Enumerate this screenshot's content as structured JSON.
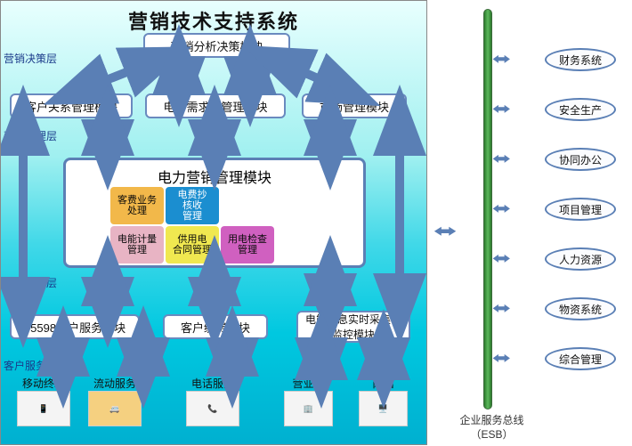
{
  "title": "营销技术支持系统",
  "layers": {
    "decision": "营销决策层",
    "management": "营销管理层",
    "business": "营销业务层",
    "service": "客户服务层"
  },
  "boxes": {
    "analysis": "营销分析决策模块",
    "crm": "客户关系管理模块",
    "demand": "电力需求侧管理模块",
    "market": "市场管理模块",
    "power_mkt": "电力营销管理模块",
    "svc_95598": "95598客户服务模块",
    "payment": "客户缴费模块",
    "energy_info": "电能信息实时采集与监控模块"
  },
  "puzzles": {
    "cust_biz": "客费业务\n处理",
    "elec_fee": "电费抄\n核收\n管理",
    "metering": "电能计量\n管理",
    "contract": "供用电\n合同管理",
    "inspect": "用电检查\n管理"
  },
  "puzzle_colors": {
    "cust_biz": "#f2b84a",
    "elec_fee": "#1b8ed0",
    "metering": "#e8b4c4",
    "contract": "#f0e850",
    "inspect": "#d060c0"
  },
  "channels": {
    "mobile": "移动终端",
    "van": "流动服务",
    "phone": "电话服务",
    "hall": "营业厅",
    "web": "网站"
  },
  "bus": {
    "label": "企业服务总线\n（ESB）"
  },
  "ovals": {
    "finance": "财务系统",
    "safety": "安全生产",
    "oa": "协同办公",
    "project": "项目管理",
    "hr": "人力资源",
    "material": "物资系统",
    "general": "综合管理"
  },
  "colors": {
    "box_border": "#6a8abf",
    "arrow": "#5a7fb5",
    "bus": "#5cb85c"
  }
}
